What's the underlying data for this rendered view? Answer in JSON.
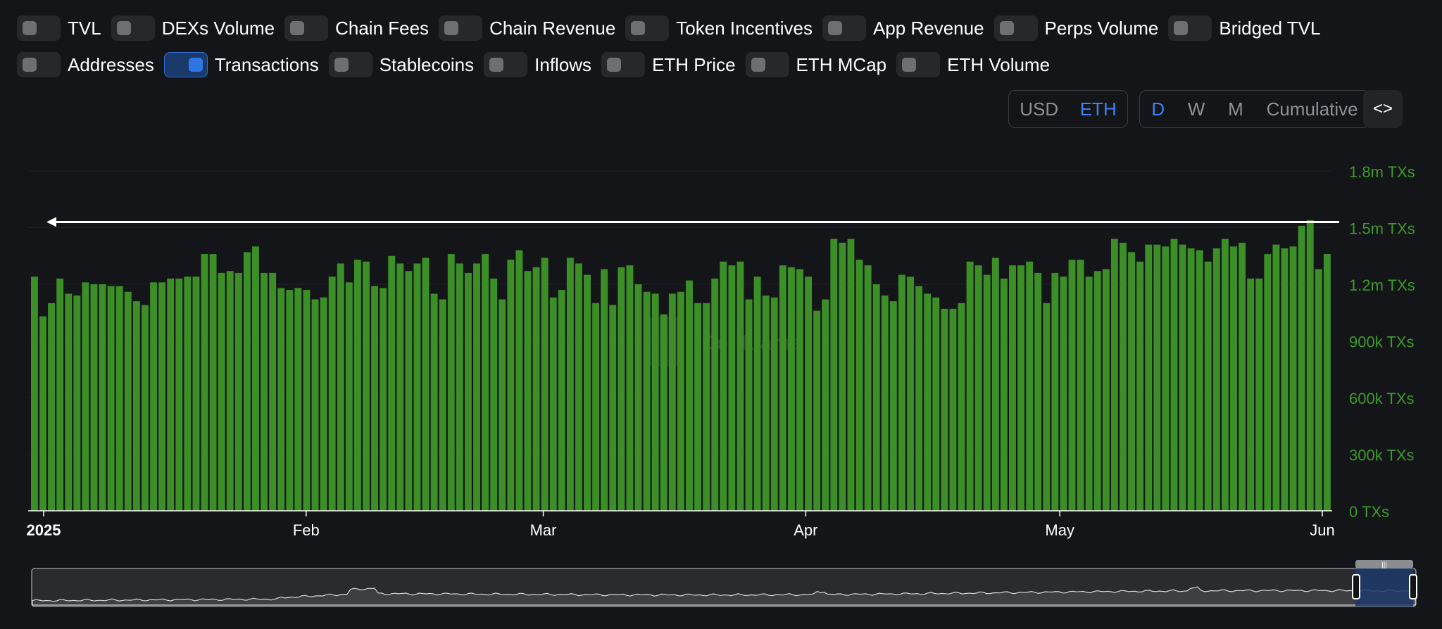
{
  "toggles_row1": [
    {
      "label": "TVL",
      "on": false
    },
    {
      "label": "DEXs Volume",
      "on": false
    },
    {
      "label": "Chain Fees",
      "on": false
    },
    {
      "label": "Chain Revenue",
      "on": false
    },
    {
      "label": "Token Incentives",
      "on": false
    },
    {
      "label": "App Revenue",
      "on": false
    },
    {
      "label": "Perps Volume",
      "on": false
    },
    {
      "label": "Bridged TVL",
      "on": false
    }
  ],
  "toggles_row2": [
    {
      "label": "Addresses",
      "on": false
    },
    {
      "label": "Transactions",
      "on": true
    },
    {
      "label": "Stablecoins",
      "on": false
    },
    {
      "label": "Inflows",
      "on": false
    },
    {
      "label": "ETH Price",
      "on": false
    },
    {
      "label": "ETH MCap",
      "on": false
    },
    {
      "label": "ETH Volume",
      "on": false
    }
  ],
  "currency": {
    "options": [
      "USD",
      "ETH"
    ],
    "selected": "ETH"
  },
  "period": {
    "options": [
      "D",
      "W",
      "M",
      "Cumulative"
    ],
    "selected": "D"
  },
  "embed_icon": "code-icon",
  "watermark": "DefiLlama",
  "colors": {
    "bar": "#3c8f27",
    "axis_label": "#3c9b2b",
    "accent": "#3a83f1",
    "background": "#141518"
  },
  "chart_data": {
    "type": "bar",
    "series": [
      {
        "name": "Transactions",
        "unit": "TXs"
      }
    ],
    "x_start": "2025-01-01",
    "x_end": "2025-06-01",
    "x_tick_labels": [
      {
        "date": "2025-01-01",
        "label": "2025"
      },
      {
        "date": "2025-02-01",
        "label": "Feb"
      },
      {
        "date": "2025-03-01",
        "label": "Mar"
      },
      {
        "date": "2025-04-01",
        "label": "Apr"
      },
      {
        "date": "2025-05-01",
        "label": "May"
      },
      {
        "date": "2025-06-01",
        "label": "Jun"
      }
    ],
    "y_ticks": [
      {
        "value": 0,
        "label": "0 TXs"
      },
      {
        "value": 300000,
        "label": "300k TXs"
      },
      {
        "value": 600000,
        "label": "600k TXs"
      },
      {
        "value": 900000,
        "label": "900k TXs"
      },
      {
        "value": 1200000,
        "label": "1.2m TXs"
      },
      {
        "value": 1500000,
        "label": "1.5m TXs"
      },
      {
        "value": 1800000,
        "label": "1.8m TXs"
      }
    ],
    "ylim": [
      0,
      1800000
    ],
    "reference_line": {
      "value": 1530000
    },
    "values": [
      1240000,
      1030000,
      1100000,
      1230000,
      1150000,
      1140000,
      1210000,
      1200000,
      1200000,
      1190000,
      1190000,
      1160000,
      1110000,
      1090000,
      1210000,
      1210000,
      1230000,
      1230000,
      1240000,
      1240000,
      1360000,
      1360000,
      1260000,
      1270000,
      1260000,
      1370000,
      1400000,
      1260000,
      1260000,
      1180000,
      1170000,
      1180000,
      1170000,
      1120000,
      1130000,
      1240000,
      1310000,
      1210000,
      1330000,
      1320000,
      1190000,
      1180000,
      1350000,
      1310000,
      1270000,
      1310000,
      1340000,
      1150000,
      1120000,
      1360000,
      1310000,
      1260000,
      1310000,
      1360000,
      1230000,
      1120000,
      1330000,
      1380000,
      1270000,
      1290000,
      1340000,
      1130000,
      1170000,
      1340000,
      1310000,
      1250000,
      1100000,
      1280000,
      1090000,
      1290000,
      1300000,
      1200000,
      1160000,
      1150000,
      1040000,
      1150000,
      1160000,
      1220000,
      1100000,
      1100000,
      1230000,
      1320000,
      1300000,
      1320000,
      1120000,
      1240000,
      1140000,
      1130000,
      1300000,
      1290000,
      1280000,
      1240000,
      1060000,
      1120000,
      1440000,
      1420000,
      1440000,
      1330000,
      1300000,
      1200000,
      1140000,
      1110000,
      1250000,
      1240000,
      1190000,
      1150000,
      1130000,
      1070000,
      1070000,
      1100000,
      1320000,
      1300000,
      1250000,
      1340000,
      1230000,
      1300000,
      1300000,
      1320000,
      1260000,
      1100000,
      1260000,
      1240000,
      1330000,
      1330000,
      1240000,
      1270000,
      1280000,
      1440000,
      1420000,
      1370000,
      1320000,
      1410000,
      1410000,
      1400000,
      1440000,
      1410000,
      1390000,
      1380000,
      1320000,
      1390000,
      1440000,
      1400000,
      1420000,
      1230000,
      1230000,
      1360000,
      1410000,
      1390000,
      1400000,
      1510000,
      1540000,
      1280000,
      1360000
    ]
  }
}
